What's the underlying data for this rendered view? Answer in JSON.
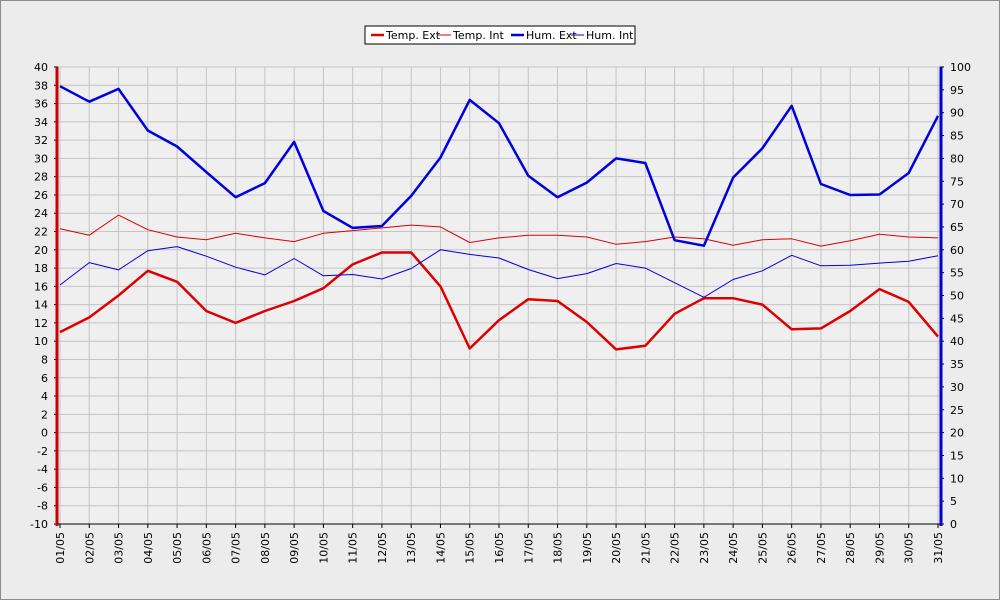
{
  "chart_data": {
    "type": "line",
    "title": "",
    "legend_position": "top-center",
    "grid": true,
    "x": [
      "01/05",
      "02/05",
      "03/05",
      "04/05",
      "05/05",
      "06/05",
      "07/05",
      "08/05",
      "09/05",
      "10/05",
      "11/05",
      "12/05",
      "13/05",
      "14/05",
      "15/05",
      "16/05",
      "17/05",
      "18/05",
      "19/05",
      "20/05",
      "21/05",
      "22/05",
      "23/05",
      "24/05",
      "25/05",
      "26/05",
      "27/05",
      "28/05",
      "29/05",
      "30/05",
      "31/05"
    ],
    "y_left": {
      "min": -10,
      "max": 40,
      "step": 2,
      "color": "#cc0000"
    },
    "y_right": {
      "min": 0,
      "max": 100,
      "step": 5,
      "color": "#0000cc"
    },
    "series": [
      {
        "name": "Temp. Ext",
        "axis": "left",
        "color": "#dd0000",
        "thick": true,
        "values": [
          11.0,
          12.6,
          15.0,
          17.7,
          16.5,
          13.3,
          12.0,
          13.3,
          14.4,
          15.8,
          18.4,
          19.7,
          19.7,
          16.0,
          9.2,
          12.3,
          14.6,
          14.4,
          12.1,
          9.1,
          9.5,
          13.0,
          14.7,
          14.7,
          14.0,
          11.3,
          11.4,
          13.3,
          15.7,
          14.3,
          10.5
        ]
      },
      {
        "name": "Temp. Int",
        "axis": "left",
        "color": "#dd0000",
        "thick": false,
        "values": [
          22.3,
          21.6,
          23.8,
          22.2,
          21.4,
          21.1,
          21.8,
          21.3,
          20.9,
          21.8,
          22.1,
          22.4,
          22.7,
          22.5,
          20.8,
          21.3,
          21.6,
          21.6,
          21.4,
          20.6,
          20.9,
          21.4,
          21.2,
          20.5,
          21.1,
          21.2,
          20.4,
          21.0,
          21.7,
          21.4,
          21.3
        ]
      },
      {
        "name": "Hum. Ext",
        "axis": "right",
        "color": "#0000dd",
        "thick": true,
        "values": [
          95.8,
          92.4,
          95.2,
          86.1,
          82.6,
          77.0,
          71.5,
          74.6,
          83.6,
          68.5,
          64.8,
          65.2,
          71.8,
          80.2,
          92.8,
          87.7,
          76.2,
          71.5,
          74.7,
          80.0,
          79.0,
          62.1,
          60.9,
          75.8,
          82.2,
          91.5,
          74.4,
          72.0,
          72.1,
          76.8,
          89.3
        ]
      },
      {
        "name": "Hum. Int",
        "axis": "right",
        "color": "#0000dd",
        "thick": false,
        "values": [
          52.3,
          57.2,
          55.6,
          59.8,
          60.7,
          58.6,
          56.2,
          54.5,
          58.1,
          54.3,
          54.6,
          53.6,
          55.9,
          60.0,
          59.0,
          58.2,
          55.7,
          53.7,
          54.8,
          57.0,
          56.0,
          52.8,
          49.6,
          53.5,
          55.4,
          58.8,
          56.5,
          56.6,
          57.1,
          57.5,
          58.7
        ]
      }
    ]
  }
}
